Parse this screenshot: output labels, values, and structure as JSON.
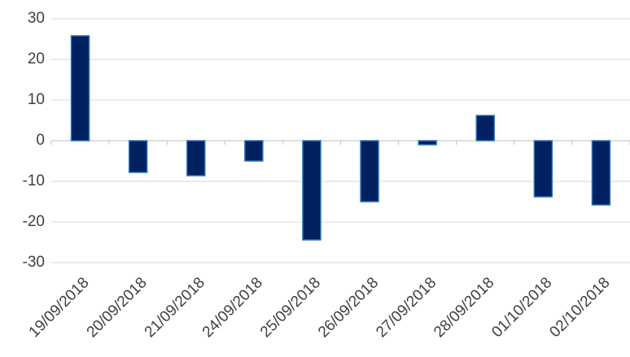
{
  "chart_data": {
    "type": "bar",
    "categories": [
      "19/09/2018",
      "20/09/2018",
      "21/09/2018",
      "24/09/2018",
      "25/09/2018",
      "26/09/2018",
      "27/09/2018",
      "28/09/2018",
      "01/10/2018",
      "02/10/2018"
    ],
    "values": [
      25.8,
      -7.8,
      -8.6,
      -5,
      -24.4,
      -15,
      -1,
      6.2,
      -13.8,
      -15.8
    ],
    "color": "#002060",
    "ylim": [
      -30,
      30
    ],
    "yticks": [
      -30,
      -20,
      -10,
      0,
      10,
      20,
      30
    ],
    "grid": true
  }
}
